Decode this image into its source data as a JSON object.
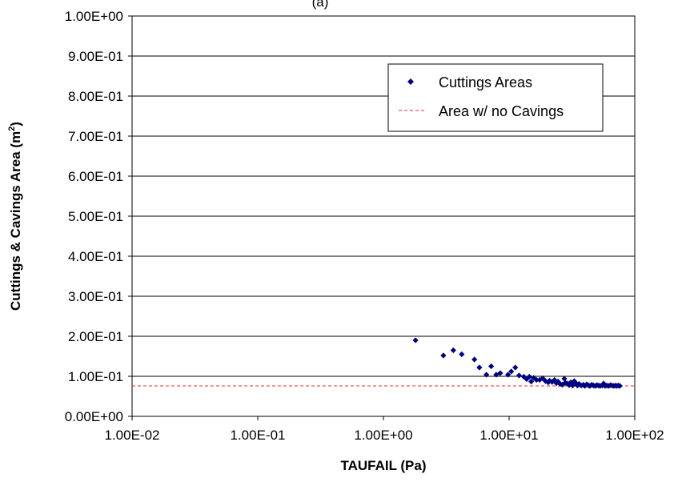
{
  "chart_data": {
    "type": "scatter",
    "title": "(a)",
    "xlabel": "TAUFAIL (Pa)",
    "ylabel": "Cuttings & Cavings Area (m",
    "ylabel_sup": "2",
    "ylabel_close": ")",
    "x_scale": "log",
    "xlim": [
      0.01,
      100
    ],
    "ylim": [
      0,
      1
    ],
    "grid": "horizontal",
    "legend_position": "top-right",
    "x_tick_values": [
      0.01,
      0.1,
      1,
      10,
      100
    ],
    "x_tick_labels": [
      "1.00E-02",
      "1.00E-01",
      "1.00E+00",
      "1.00E+01",
      "1.00E+02"
    ],
    "y_tick_values": [
      0,
      0.1,
      0.2,
      0.3,
      0.4,
      0.5,
      0.6,
      0.7,
      0.8,
      0.9,
      1.0
    ],
    "y_tick_labels": [
      "0.00E+00",
      "1.00E-01",
      "2.00E-01",
      "3.00E-01",
      "4.00E-01",
      "5.00E-01",
      "6.00E-01",
      "7.00E-01",
      "8.00E-01",
      "9.00E-01",
      "1.00E+00"
    ],
    "series": [
      {
        "name": "Cuttings Areas",
        "style": "diamond-markers",
        "color": "#000080",
        "points": [
          [
            1.8,
            0.19
          ],
          [
            3.0,
            0.152
          ],
          [
            3.6,
            0.165
          ],
          [
            4.2,
            0.155
          ],
          [
            5.3,
            0.142
          ],
          [
            5.8,
            0.122
          ],
          [
            6.6,
            0.104
          ],
          [
            7.2,
            0.125
          ],
          [
            7.9,
            0.104
          ],
          [
            8.5,
            0.108
          ],
          [
            9.8,
            0.104
          ],
          [
            10.4,
            0.112
          ],
          [
            11.2,
            0.122
          ],
          [
            12.0,
            0.102
          ],
          [
            13.1,
            0.099
          ],
          [
            13.8,
            0.093
          ],
          [
            14.5,
            0.099
          ],
          [
            15.0,
            0.087
          ],
          [
            15.7,
            0.096
          ],
          [
            16.5,
            0.091
          ],
          [
            17.5,
            0.091
          ],
          [
            18.5,
            0.095
          ],
          [
            19.5,
            0.088
          ],
          [
            20.5,
            0.085
          ],
          [
            21.0,
            0.089
          ],
          [
            22.0,
            0.086
          ],
          [
            23.0,
            0.091
          ],
          [
            23.8,
            0.083
          ],
          [
            24.5,
            0.087
          ],
          [
            25.5,
            0.081
          ],
          [
            26.5,
            0.079
          ],
          [
            27.5,
            0.094
          ],
          [
            28.0,
            0.084
          ],
          [
            29.0,
            0.082
          ],
          [
            30.0,
            0.078
          ],
          [
            31.0,
            0.085
          ],
          [
            32.0,
            0.077
          ],
          [
            33.0,
            0.088
          ],
          [
            34.0,
            0.083
          ],
          [
            35.0,
            0.077
          ],
          [
            36.0,
            0.081
          ],
          [
            37.5,
            0.077
          ],
          [
            39.0,
            0.079
          ],
          [
            40.0,
            0.076
          ],
          [
            41.5,
            0.08
          ],
          [
            43.0,
            0.077
          ],
          [
            44.0,
            0.076
          ],
          [
            45.5,
            0.079
          ],
          [
            47.0,
            0.077
          ],
          [
            48.5,
            0.076
          ],
          [
            50.0,
            0.078
          ],
          [
            51.5,
            0.077
          ],
          [
            53.0,
            0.076
          ],
          [
            55.0,
            0.077
          ],
          [
            56.5,
            0.082
          ],
          [
            58.0,
            0.076
          ],
          [
            60.0,
            0.077
          ],
          [
            62.0,
            0.076
          ],
          [
            64.0,
            0.078
          ],
          [
            66.0,
            0.077
          ],
          [
            68.0,
            0.076
          ],
          [
            70.0,
            0.077
          ],
          [
            72.0,
            0.076
          ],
          [
            74.0,
            0.077
          ],
          [
            76.0,
            0.076
          ]
        ]
      },
      {
        "name": "Area w/ no Cavings",
        "style": "dashed-line",
        "color": "#e03030",
        "y": 0.076
      }
    ]
  }
}
